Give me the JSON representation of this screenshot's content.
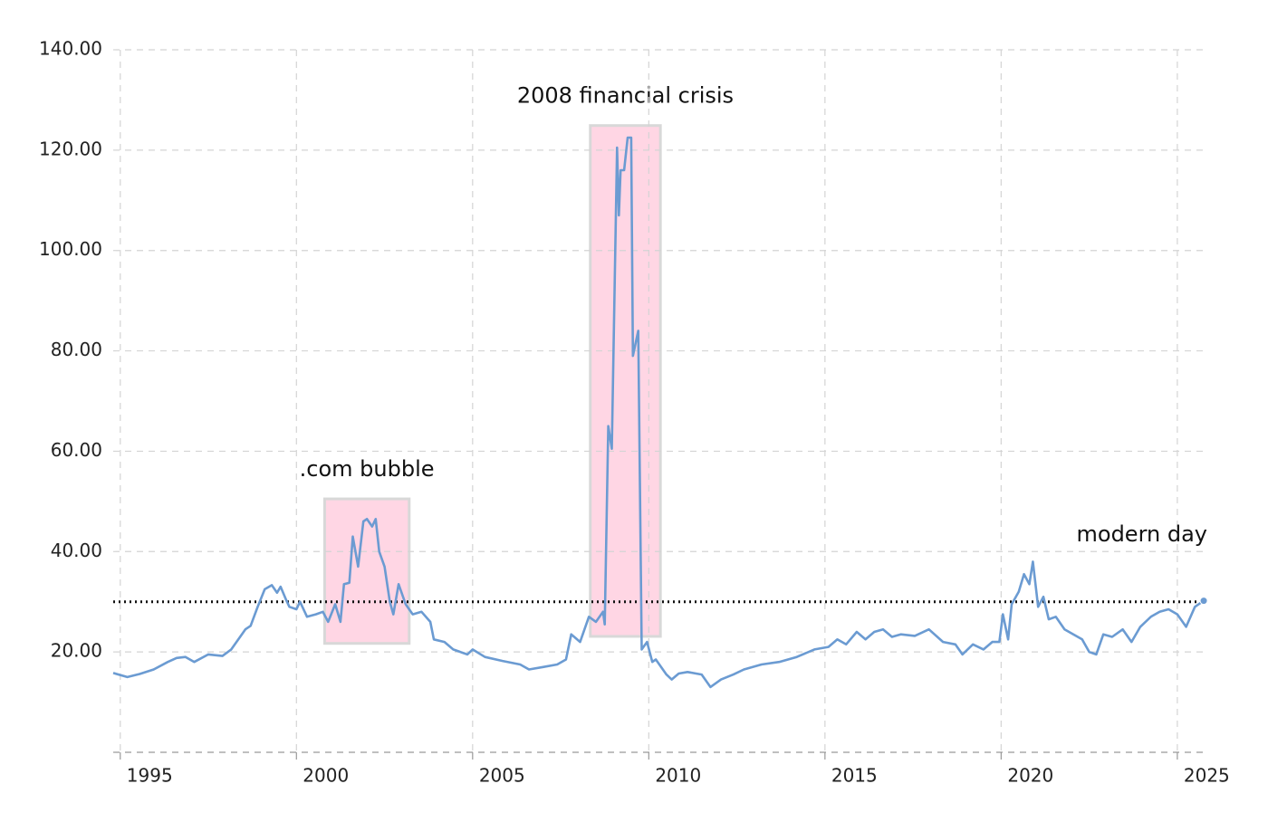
{
  "chart_data": {
    "type": "line",
    "x": [
      1994.8,
      1995.2,
      1995.55,
      1995.95,
      1996.35,
      1996.6,
      1996.85,
      1997.1,
      1997.5,
      1997.9,
      1998.15,
      1998.4,
      1998.55,
      1998.7,
      1998.9,
      1999.1,
      1999.3,
      1999.45,
      1999.55,
      1999.7,
      1999.8,
      2000,
      2000.1,
      2000.3,
      2000.55,
      2000.75,
      2000.9,
      2001.1,
      2001.25,
      2001.35,
      2001.5,
      2001.6,
      2001.75,
      2001.9,
      2002,
      2002.15,
      2002.25,
      2002.35,
      2002.5,
      2002.65,
      2002.75,
      2002.9,
      2003.1,
      2003.3,
      2003.55,
      2003.8,
      2003.9,
      2004.2,
      2004.45,
      2004.85,
      2005,
      2005.35,
      2005.85,
      2006.35,
      2006.6,
      2007,
      2007.4,
      2007.65,
      2007.8,
      2008.05,
      2008.3,
      2008.5,
      2008.7,
      2008.75,
      2008.85,
      2008.95,
      2009.1,
      2009.15,
      2009.2,
      2009.3,
      2009.4,
      2009.5,
      2009.55,
      2009.7,
      2009.8,
      2009.95,
      2010.1,
      2010.2,
      2010.5,
      2010.65,
      2010.85,
      2011.1,
      2011.5,
      2011.75,
      2012.05,
      2012.4,
      2012.7,
      2013.2,
      2013.7,
      2014.2,
      2014.7,
      2015.1,
      2015.35,
      2015.6,
      2015.9,
      2016.15,
      2016.4,
      2016.65,
      2016.9,
      2017.15,
      2017.55,
      2017.95,
      2018.35,
      2018.7,
      2018.9,
      2019.2,
      2019.5,
      2019.75,
      2019.95,
      2020.05,
      2020.2,
      2020.3,
      2020.5,
      2020.65,
      2020.8,
      2020.9,
      2021.05,
      2021.2,
      2021.35,
      2021.55,
      2021.8,
      2022.05,
      2022.3,
      2022.5,
      2022.7,
      2022.9,
      2023.15,
      2023.45,
      2023.7,
      2023.95,
      2024.25,
      2024.5,
      2024.75,
      2025,
      2025.25,
      2025.5,
      2025.75
    ],
    "values": [
      15.8,
      15.0,
      15.6,
      16.5,
      18.0,
      18.8,
      19.0,
      18.0,
      19.5,
      19.2,
      20.5,
      23.0,
      24.5,
      25.2,
      29.0,
      32.5,
      33.3,
      31.8,
      33.0,
      30.5,
      29.0,
      28.5,
      30.0,
      27.0,
      27.5,
      28.0,
      26.0,
      29.5,
      26.0,
      33.5,
      33.8,
      43.0,
      37.0,
      46.0,
      46.5,
      45.0,
      46.5,
      40.0,
      37.0,
      30.0,
      27.5,
      33.5,
      29.5,
      27.5,
      28.0,
      26.0,
      22.5,
      22.0,
      20.5,
      19.5,
      20.5,
      19.0,
      18.2,
      17.5,
      16.5,
      17.0,
      17.5,
      18.5,
      23.5,
      22.0,
      27.0,
      26.0,
      28.0,
      25.5,
      65.0,
      60.5,
      120.5,
      107.0,
      116.0,
      116.0,
      122.5,
      122.5,
      79.0,
      84.0,
      20.5,
      22.0,
      18.0,
      18.5,
      15.5,
      14.5,
      15.7,
      16.0,
      15.5,
      13.0,
      14.5,
      15.5,
      16.5,
      17.5,
      18.0,
      19.0,
      20.5,
      21.0,
      22.5,
      21.5,
      24.0,
      22.5,
      24.0,
      24.5,
      23.0,
      23.5,
      23.2,
      24.5,
      22.0,
      21.5,
      19.5,
      21.5,
      20.5,
      22.0,
      22.0,
      27.5,
      22.5,
      29.5,
      32.0,
      35.5,
      33.5,
      38.0,
      29.0,
      31.0,
      26.5,
      27.0,
      24.5,
      23.5,
      22.5,
      20.0,
      19.5,
      23.5,
      23.0,
      24.5,
      22.0,
      25.0,
      27.0,
      28.0,
      28.5,
      27.5,
      25.0,
      29.0,
      30.2
    ],
    "color": "#6b9bd2",
    "xlim": [
      1994.8,
      2025.8
    ],
    "xticks": [
      1995,
      2000,
      2005,
      2010,
      2015,
      2020,
      2025
    ],
    "ylim": [
      0,
      140
    ],
    "yticks": [
      {
        "value": 20,
        "label": "20.00"
      },
      {
        "value": 40,
        "label": "40.00"
      },
      {
        "value": 60,
        "label": "60.00"
      },
      {
        "value": 80,
        "label": "80.00"
      },
      {
        "value": 100,
        "label": "100.00"
      },
      {
        "value": 120,
        "label": "120.00"
      },
      {
        "value": 140,
        "label": "140.00"
      }
    ],
    "grid": true,
    "reference_line": 30,
    "regions": [
      {
        "label": ".com bubble",
        "x": [
          2000.8,
          2003.2
        ],
        "y": [
          21.7,
          50.5
        ],
        "color": "#ffd6e4"
      },
      {
        "label": "2008 financial crisis",
        "x": [
          2008.34,
          2010.33
        ],
        "y": [
          23.1,
          124.9
        ],
        "color": "#ffd6e4"
      }
    ],
    "annotation": "modern day"
  }
}
